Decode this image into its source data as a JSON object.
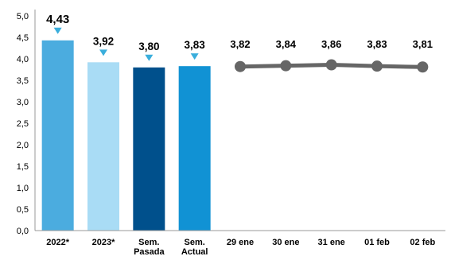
{
  "chart_data": {
    "type": "bar",
    "ylim": [
      0,
      5
    ],
    "yticks": [
      "0,0",
      "0,5",
      "1,0",
      "1,5",
      "2,0",
      "2,5",
      "3,0",
      "3,5",
      "4,0",
      "4,5",
      "5,0"
    ],
    "bars": [
      {
        "category": [
          "2022*"
        ],
        "value": 4.43,
        "label": "4,43",
        "color": "#4BACDF"
      },
      {
        "category": [
          "2023*"
        ],
        "value": 3.92,
        "label": "3,92",
        "color": "#A9DCF5"
      },
      {
        "category": [
          "Sem.",
          "Pasada"
        ],
        "value": 3.8,
        "label": "3,80",
        "color": "#00508C"
      },
      {
        "category": [
          "Sem.",
          "Actual"
        ],
        "value": 3.83,
        "label": "3,83",
        "color": "#1192D4"
      }
    ],
    "line": {
      "categories": [
        "29 ene",
        "30 ene",
        "31 ene",
        "01 feb",
        "02 feb"
      ],
      "values": [
        3.82,
        3.84,
        3.86,
        3.83,
        3.81
      ],
      "labels": [
        "3,82",
        "3,84",
        "3,86",
        "3,83",
        "3,81"
      ],
      "color": "#666666"
    },
    "marker_color": "#3AAEDC"
  }
}
